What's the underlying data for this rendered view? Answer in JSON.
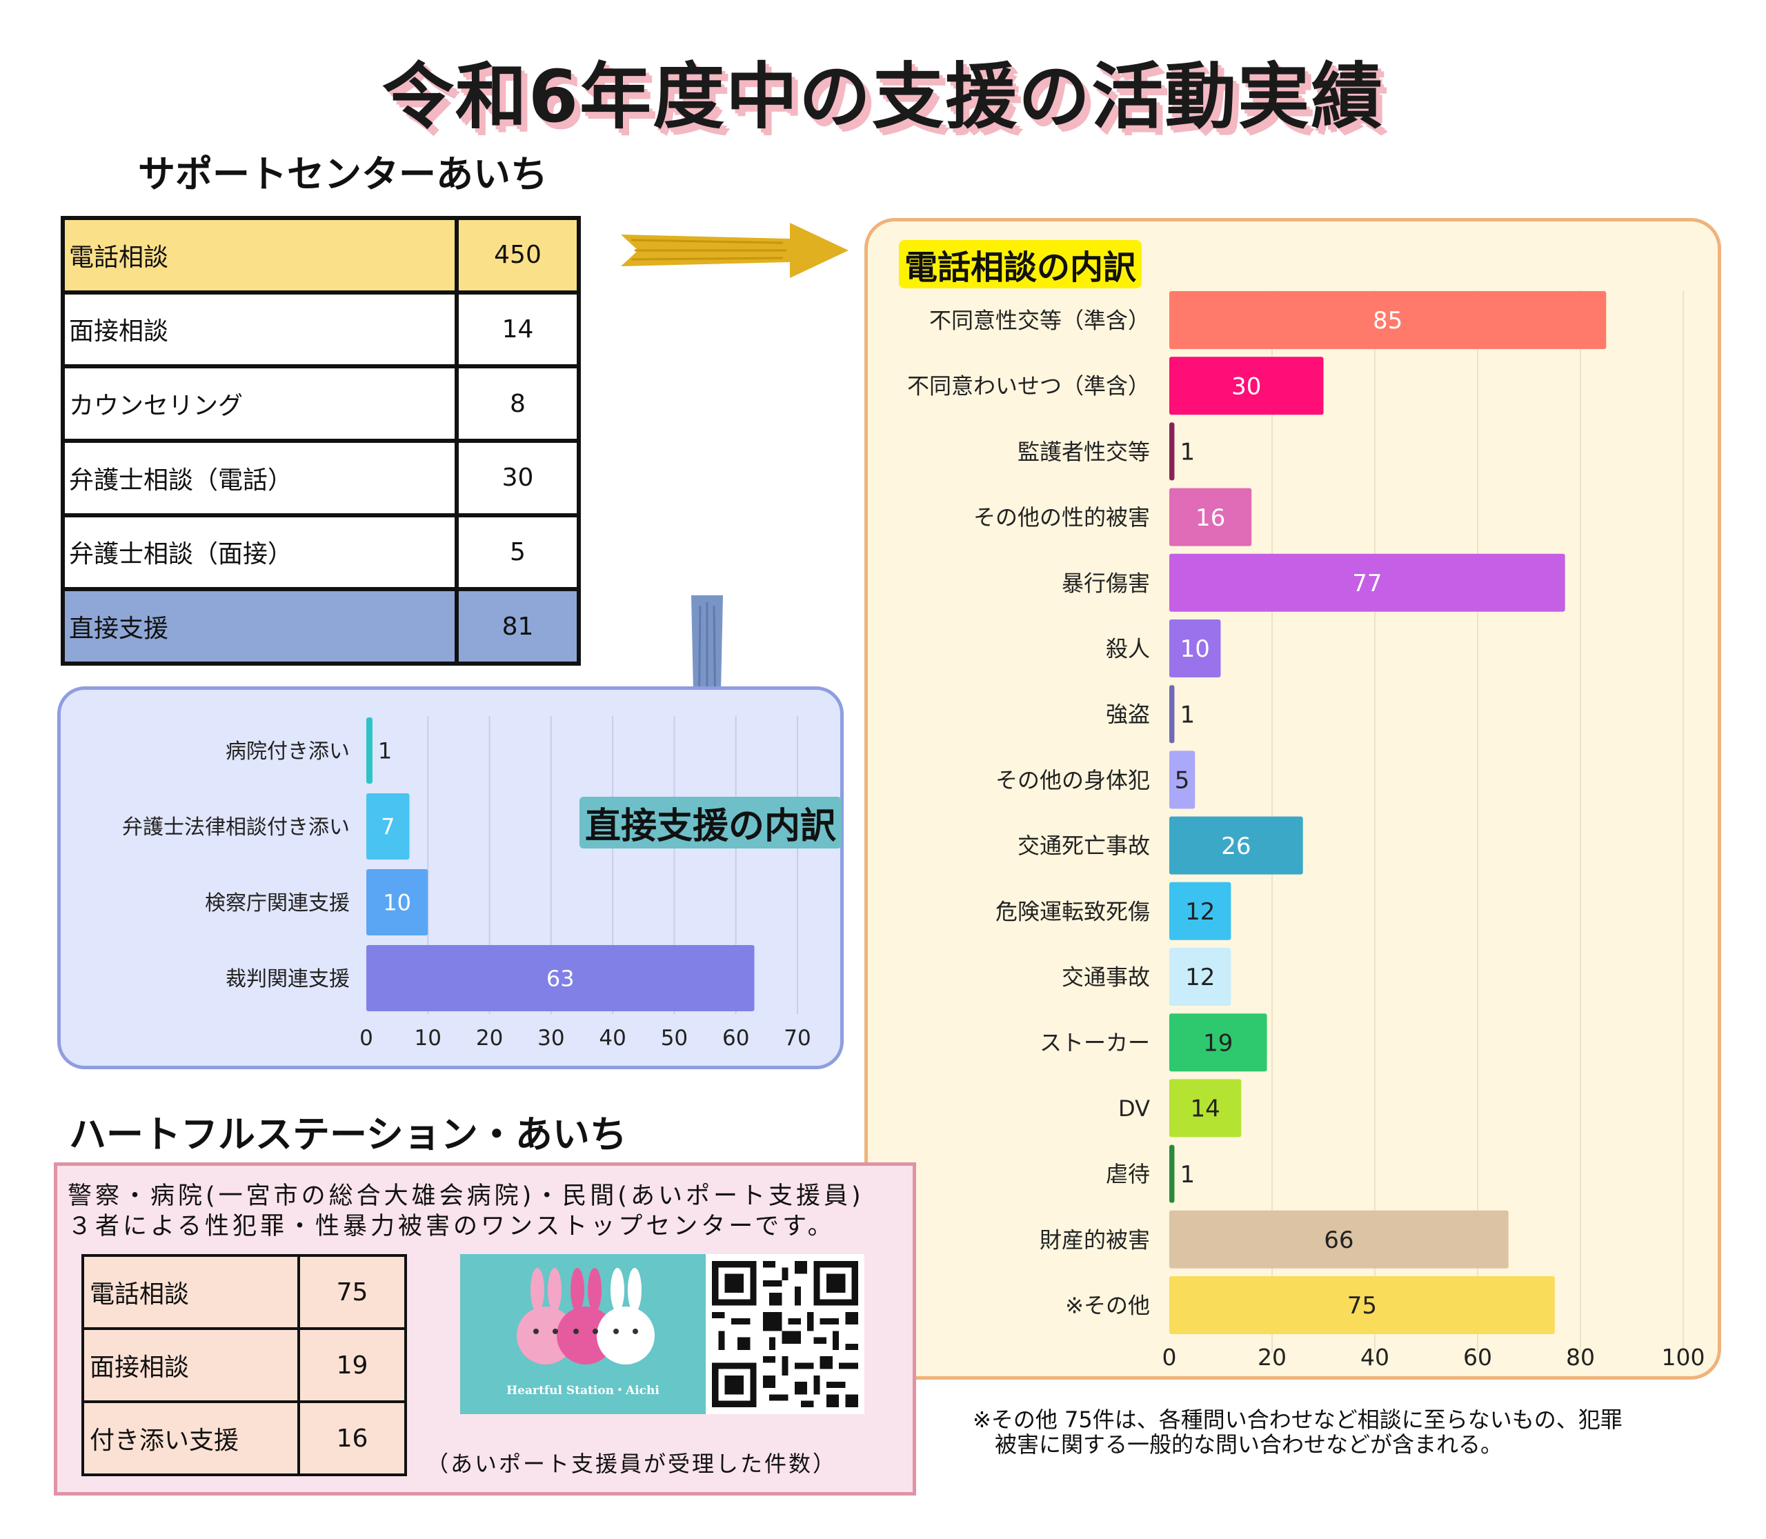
{
  "title": "令和6年度中の支援の活動実績",
  "support_center": {
    "heading": "サポートセンターあいち",
    "rows": [
      {
        "label": "電話相談",
        "value": "450"
      },
      {
        "label": "面接相談",
        "value": "14"
      },
      {
        "label": "カウンセリング",
        "value": "8"
      },
      {
        "label": "弁護士相談（電話）",
        "value": "30"
      },
      {
        "label": "弁護士相談（面接）",
        "value": "5"
      },
      {
        "label": "直接支援",
        "value": "81"
      }
    ],
    "phone_row_color": "#fbe08a",
    "direct_row_color": "#8fa7d6"
  },
  "heartful": {
    "heading": "ハートフルステーション・あいち",
    "description": "警察・病院(一宮市の総合大雄会病院)・民間(あいポート支援員)\n３者による性犯罪・性暴力被害のワンストップセンターです。",
    "rows": [
      {
        "label": "電話相談",
        "value": "75"
      },
      {
        "label": "面接相談",
        "value": "19"
      },
      {
        "label": "付き添い支援",
        "value": "16"
      }
    ],
    "logo_text": "Heartful Station・Aichi",
    "caption": "（あいポート支援員が受理した件数）"
  },
  "footnote": "※その他 75件は、各種問い合わせなど相談に至らないもの、犯罪\n　被害に関する一般的な問い合わせなどが含まれる。",
  "chart_data": [
    {
      "type": "bar",
      "orientation": "horizontal",
      "title": "直接支援の内訳",
      "categories": [
        "病院付き添い",
        "弁護士法律相談付き添い",
        "検察庁関連支援",
        "裁判関連支援"
      ],
      "values": [
        1,
        7,
        10,
        63
      ],
      "colors": [
        "#2ec4c6",
        "#48c3f2",
        "#5aa6f4",
        "#8080e6"
      ],
      "xlim": [
        0,
        70
      ],
      "xticks": [
        0,
        10,
        20,
        30,
        40,
        50,
        60,
        70
      ],
      "grid": true
    },
    {
      "type": "bar",
      "orientation": "horizontal",
      "title": "電話相談の内訳",
      "categories": [
        "不同意性交等（準含）",
        "不同意わいせつ（準含）",
        "監護者性交等",
        "その他の性的被害",
        "暴行傷害",
        "殺人",
        "強盗",
        "その他の身体犯",
        "交通死亡事故",
        "危険運転致死傷",
        "交通事故",
        "ストーカー",
        "DV",
        "虐待",
        "財産的被害",
        "※その他"
      ],
      "values": [
        85,
        30,
        1,
        16,
        77,
        10,
        1,
        5,
        26,
        12,
        12,
        19,
        14,
        1,
        66,
        75
      ],
      "colors": [
        "#ff7a6a",
        "#ff0e77",
        "#8b2257",
        "#e06bb7",
        "#c45fe6",
        "#9a73ec",
        "#6f69b8",
        "#aaa8f8",
        "#3ba8c8",
        "#3cc2f0",
        "#c9edfb",
        "#2ec86f",
        "#b5e332",
        "#2a8a3a",
        "#dbc3a3",
        "#f8dc5a"
      ],
      "label_colors": [
        "light",
        "light",
        "dark",
        "light",
        "light",
        "light",
        "dark",
        "dark",
        "light",
        "dark",
        "dark",
        "dark",
        "dark",
        "dark",
        "dark",
        "dark"
      ],
      "xlim": [
        0,
        100
      ],
      "xticks": [
        0,
        20,
        40,
        60,
        80,
        100
      ],
      "grid": true
    }
  ]
}
